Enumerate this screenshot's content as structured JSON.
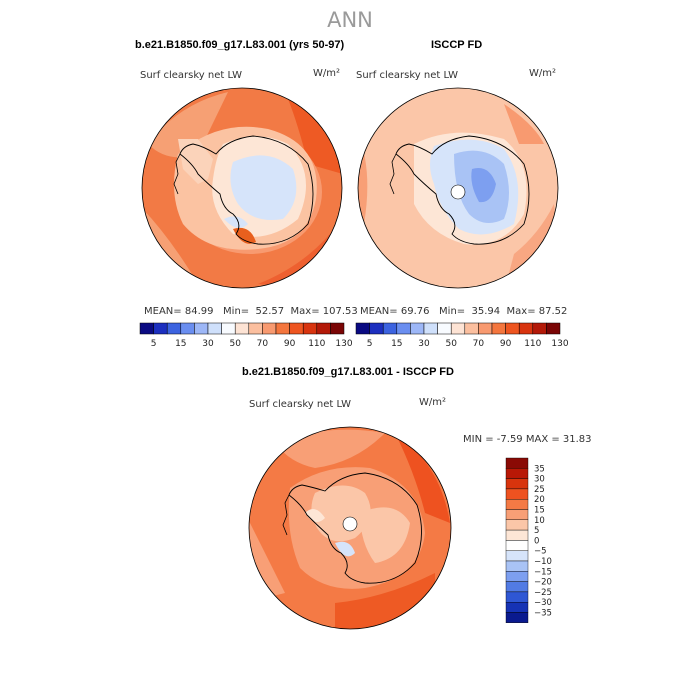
{
  "page": {
    "title": "ANN"
  },
  "top_left": {
    "case_title": "b.e21.B1850.f09_g17.L83.001 (yrs 50-97)",
    "variable": "Surf clearsky net LW",
    "units": "W/m²",
    "stats": {
      "mean_label": "MEAN=",
      "mean": "84.99",
      "min_label": "Min=",
      "min": "52.57",
      "max_label": "Max=",
      "max": "107.53"
    }
  },
  "top_right": {
    "case_title": "ISCCP FD",
    "variable": "Surf clearsky net LW",
    "units": "W/m²",
    "stats": {
      "mean_label": "MEAN=",
      "mean": "69.76",
      "min_label": "Min=",
      "min": "35.94",
      "max_label": "Max=",
      "max": "87.52"
    }
  },
  "top_colorbar": {
    "colors": [
      "#0a0a82",
      "#1c2fbf",
      "#3c63e0",
      "#6a8ef0",
      "#9db7f7",
      "#cfe0fb",
      "#f8fbff",
      "#fde3d4",
      "#fbbf9f",
      "#f89a70",
      "#f4763e",
      "#ee5520",
      "#d8340f",
      "#b31908",
      "#7a0505"
    ],
    "labels": [
      "5",
      "15",
      "30",
      "50",
      "70",
      "90",
      "110",
      "130"
    ]
  },
  "bottom": {
    "case_title": "b.e21.B1850.f09_g17.L83.001 - ISCCP FD",
    "variable": "Surf clearsky net LW",
    "units": "W/m²",
    "minmax": "MIN =   -7.59  MAX =   31.83"
  },
  "diff_colorbar": {
    "colors_top_to_bottom": [
      "#8a0a05",
      "#b81806",
      "#d8340d",
      "#ee5220",
      "#f47a45",
      "#f89f76",
      "#fbc6a8",
      "#fde6d6",
      "#ffffff",
      "#d6e4fa",
      "#a9c3f5",
      "#7d9ff0",
      "#527be4",
      "#2f57d4",
      "#1633b5",
      "#0a1a8f"
    ],
    "labels": [
      "35",
      "30",
      "25",
      "20",
      "15",
      "10",
      "5",
      "0",
      "−5",
      "−10",
      "−15",
      "−20",
      "−25",
      "−30",
      "−35"
    ]
  }
}
